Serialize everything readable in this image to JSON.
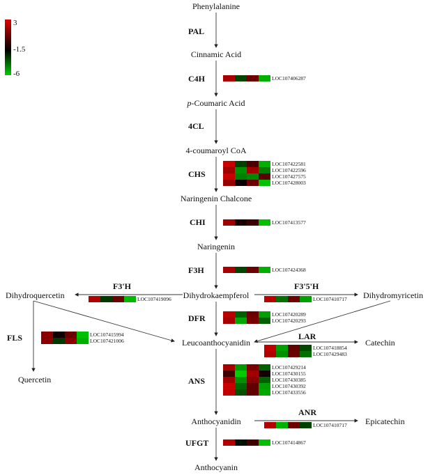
{
  "legend": {
    "max": "3",
    "mid": "-1.5",
    "min": "-6",
    "colors": [
      "#e00000",
      "#000000",
      "#00cc00"
    ]
  },
  "compounds": {
    "phe": "Phenylalanine",
    "cin": "Cinnamic Acid",
    "pcou_prefix": "p",
    "pcou": "-Coumaric Acid",
    "coa": "4-coumaroyl CoA",
    "nch": "Naringenin Chalcone",
    "nar": "Naringenin",
    "dhk": "Dihydrokaempferol",
    "dhq": "Dihydroquercetin",
    "dhm": "Dihydromyricetin",
    "leu": "Leucoanthocyanidin",
    "que": "Quercetin",
    "cat": "Catechin",
    "acy": "Anthocyanidin",
    "epi": "Epicatechin",
    "acn": "Anthocyanin"
  },
  "enzymes": {
    "pal": "PAL",
    "c4h": "C4H",
    "cl4": "4CL",
    "chs": "CHS",
    "chi": "CHI",
    "f3h": "F3H",
    "f3ph": "F3'H",
    "f35h": "F3'5'H",
    "dfr": "DFR",
    "fls": "FLS",
    "lar": "LAR",
    "ans": "ANS",
    "anr": "ANR",
    "ufgt": "UFGT"
  },
  "heatmaps": {
    "c4h": [
      {
        "gene": "LOC107406287",
        "colors": [
          "#a80000",
          "#004400",
          "#6a0000",
          "#00b000"
        ]
      }
    ],
    "chs": [
      {
        "gene": "LOC107422581",
        "colors": [
          "#c80000",
          "#004000",
          "#4a0000",
          "#00b000"
        ]
      },
      {
        "gene": "LOC107422596",
        "colors": [
          "#a00000",
          "#009000",
          "#a00000",
          "#007c00"
        ]
      },
      {
        "gene": "LOC107427575",
        "colors": [
          "#c80000",
          "#008000",
          "#008800",
          "#5a0000"
        ]
      },
      {
        "gene": "LOC107428003",
        "colors": [
          "#980000",
          "#080000",
          "#6a0000",
          "#00c000"
        ]
      }
    ],
    "chi": [
      {
        "gene": "LOC107413577",
        "colors": [
          "#a00000",
          "#180000",
          "#3c0000",
          "#00c000"
        ]
      }
    ],
    "f3h": [
      {
        "gene": "LOC107424368",
        "colors": [
          "#a80000",
          "#004400",
          "#6a0000",
          "#00b000"
        ]
      }
    ],
    "f3ph": [
      {
        "gene": "LOC107419096",
        "colors": [
          "#b00000",
          "#003800",
          "#6a0000",
          "#00b800"
        ]
      }
    ],
    "f35h": [
      {
        "gene": "LOC107410717",
        "colors": [
          "#b80000",
          "#007000",
          "#6a0000",
          "#00a000"
        ]
      }
    ],
    "dfr": [
      {
        "gene": "LOC107420289",
        "colors": [
          "#b80000",
          "#006000",
          "#6a0000",
          "#00a000"
        ]
      },
      {
        "gene": "LOC107420293",
        "colors": [
          "#a80000",
          "#00a800",
          "#780000",
          "#006000"
        ]
      }
    ],
    "fls": [
      {
        "gene": "LOC107415994",
        "colors": [
          "#8a0000",
          "#100000",
          "#6a0000",
          "#00c000"
        ]
      },
      {
        "gene": "LOC107421006",
        "colors": [
          "#8a0000",
          "#003800",
          "#8a0000",
          "#00b000"
        ]
      }
    ],
    "lar": [
      {
        "gene": "LOC107418854",
        "colors": [
          "#c00000",
          "#00a000",
          "#600000",
          "#004800"
        ]
      },
      {
        "gene": "LOC107429483",
        "colors": [
          "#b00000",
          "#009000",
          "#6a0000",
          "#007000"
        ]
      }
    ],
    "ans": [
      {
        "gene": "LOC107429214",
        "colors": [
          "#a80000",
          "#009800",
          "#7a0000",
          "#006000"
        ]
      },
      {
        "gene": "LOC107430155",
        "colors": [
          "#400000",
          "#00cc00",
          "#a00000",
          "#100000"
        ]
      },
      {
        "gene": "LOC107430385",
        "colors": [
          "#a00000",
          "#009000",
          "#8a0000",
          "#006000"
        ]
      },
      {
        "gene": "LOC107430392",
        "colors": [
          "#c80000",
          "#006800",
          "#600000",
          "#00a000"
        ]
      },
      {
        "gene": "LOC107433556",
        "colors": [
          "#c00000",
          "#005000",
          "#600000",
          "#00a800"
        ]
      }
    ],
    "anr": [
      {
        "gene": "LOC107410717",
        "colors": [
          "#b00000",
          "#00b000",
          "#6a0000",
          "#004000"
        ]
      }
    ],
    "ufgt": [
      {
        "gene": "LOC107414867",
        "colors": [
          "#b00000",
          "#001000",
          "#400000",
          "#00c000"
        ]
      }
    ]
  }
}
